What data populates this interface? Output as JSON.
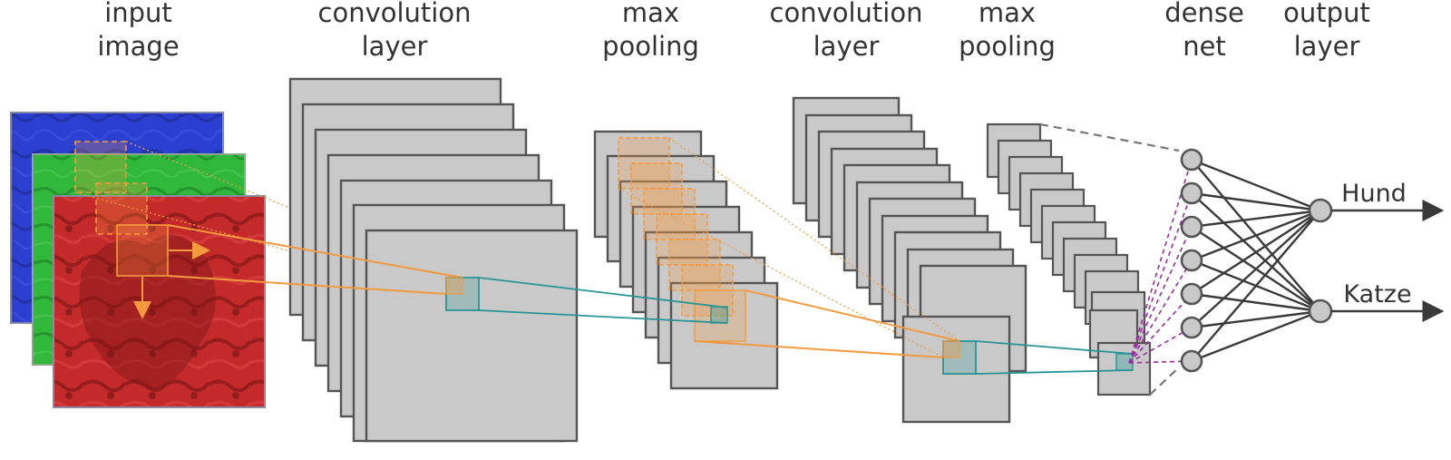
{
  "headers": [
    {
      "line1": "input",
      "line2": "image"
    },
    {
      "line1": "convolution",
      "line2": "layer"
    },
    {
      "line1": "max",
      "line2": "pooling"
    },
    {
      "line1": "convolution",
      "line2": "layer"
    },
    {
      "line1": "max",
      "line2": "pooling"
    },
    {
      "line1": "dense",
      "line2": "net"
    },
    {
      "line1": "output",
      "line2": "layer"
    }
  ],
  "outputs": [
    "Hund",
    "Katze"
  ],
  "colors": {
    "map_fill": "#c9c9c9",
    "map_stroke": "#555555",
    "receptive_field": "#f39a3f",
    "kernel": "#2a9595",
    "dense_link": "#9b2d9b",
    "connection": "#3a3a3a",
    "input_blue": "#2b3fd0",
    "input_green": "#2fb83a",
    "input_red": "#c42a2a"
  }
}
